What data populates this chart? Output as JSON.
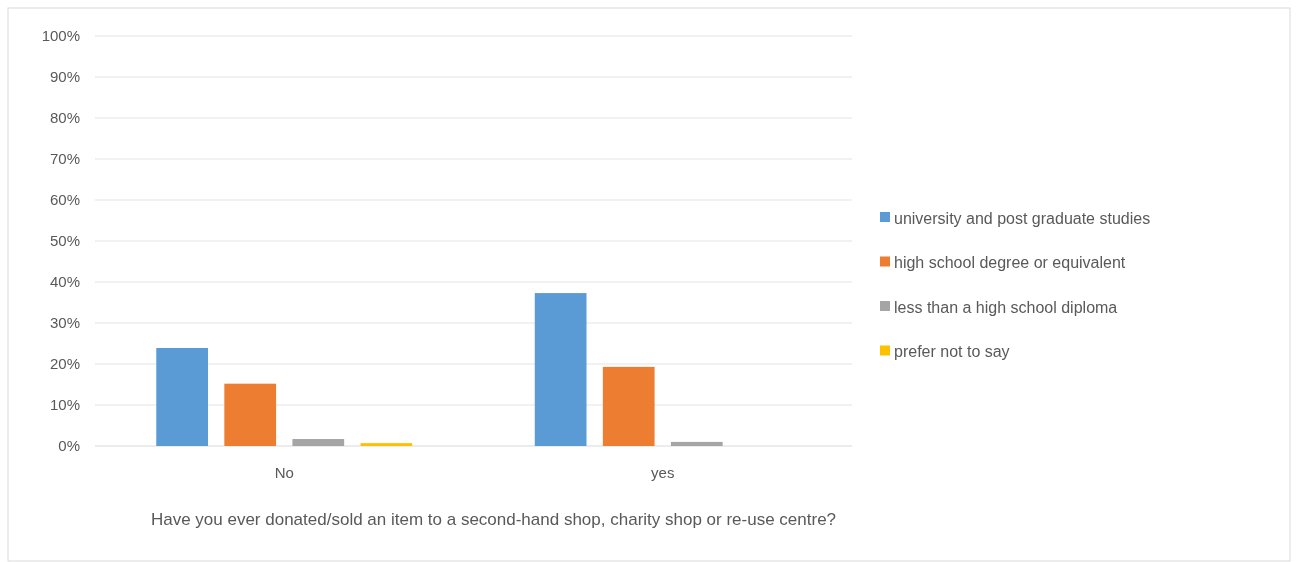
{
  "chart_data": {
    "type": "bar",
    "xlabel": "Have you ever donated/sold an item to a second-hand shop, charity shop or re-use centre?",
    "categories": [
      "No",
      "yes"
    ],
    "series": [
      {
        "name": "university and post graduate studies",
        "color": "#5b9bd5",
        "values": [
          23.9,
          37.3
        ]
      },
      {
        "name": "high school  degree or equivalent",
        "color": "#ed7d31",
        "values": [
          15.2,
          19.3
        ]
      },
      {
        "name": "less than a high school diploma",
        "color": "#a5a5a5",
        "values": [
          1.7,
          1.0
        ]
      },
      {
        "name": "prefer not to say",
        "color": "#ffc000",
        "values": [
          0.7,
          0
        ]
      }
    ],
    "ylim": [
      0,
      100
    ],
    "yticks": [
      {
        "value": 0,
        "label": "0%"
      },
      {
        "value": 10,
        "label": "10%"
      },
      {
        "value": 20,
        "label": "20%"
      },
      {
        "value": 30,
        "label": "30%"
      },
      {
        "value": 40,
        "label": "40%"
      },
      {
        "value": 50,
        "label": "50%"
      },
      {
        "value": 60,
        "label": "60%"
      },
      {
        "value": 70,
        "label": "70%"
      },
      {
        "value": 80,
        "label": "80%"
      },
      {
        "value": 90,
        "label": "90%"
      },
      {
        "value": 100,
        "label": "100%"
      }
    ],
    "grid": "y",
    "legend": "right"
  }
}
